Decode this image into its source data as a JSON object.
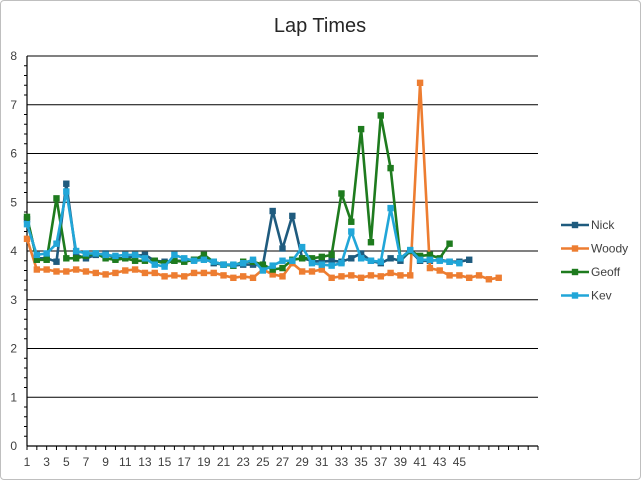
{
  "chart_data": {
    "type": "line",
    "title": "Lap Times",
    "xlabel": "",
    "ylabel": "",
    "ylim": [
      0,
      8
    ],
    "yticks": [
      0,
      1,
      2,
      3,
      4,
      5,
      6,
      7,
      8
    ],
    "xlim": [
      1,
      53
    ],
    "xtick_labels": [
      1,
      3,
      5,
      7,
      9,
      11,
      13,
      15,
      17,
      19,
      21,
      23,
      25,
      27,
      29,
      31,
      33,
      35,
      37,
      39,
      41,
      43,
      45
    ],
    "grid": "horizontal",
    "legend_position": "right",
    "series": [
      {
        "name": "Nick",
        "color": "#1f5b7e",
        "values": [
          4.65,
          3.85,
          3.85,
          3.78,
          5.38,
          3.92,
          3.85,
          3.92,
          3.95,
          3.85,
          3.85,
          3.9,
          3.92,
          3.8,
          3.78,
          3.8,
          3.8,
          3.82,
          3.85,
          3.75,
          3.72,
          3.7,
          3.72,
          3.72,
          3.7,
          4.82,
          4.05,
          4.72,
          3.85,
          3.8,
          3.78,
          3.8,
          3.78,
          3.85,
          3.95,
          3.8,
          3.75,
          3.85,
          3.8,
          4.0,
          3.8,
          3.8,
          3.82,
          3.78,
          3.78,
          3.82
        ]
      },
      {
        "name": "Woody",
        "color": "#ed7d31",
        "values": [
          4.25,
          3.62,
          3.62,
          3.58,
          3.58,
          3.62,
          3.58,
          3.55,
          3.52,
          3.55,
          3.6,
          3.62,
          3.55,
          3.55,
          3.48,
          3.5,
          3.48,
          3.55,
          3.55,
          3.55,
          3.5,
          3.45,
          3.48,
          3.45,
          3.62,
          3.52,
          3.48,
          3.75,
          3.58,
          3.58,
          3.62,
          3.45,
          3.48,
          3.5,
          3.45,
          3.5,
          3.48,
          3.55,
          3.5,
          3.5,
          7.45,
          3.65,
          3.6,
          3.5,
          3.5,
          3.45,
          3.5,
          3.42,
          3.45
        ]
      },
      {
        "name": "Geoff",
        "color": "#1e7b1e",
        "values": [
          4.7,
          3.82,
          3.82,
          5.08,
          3.85,
          3.85,
          3.9,
          3.95,
          3.85,
          3.82,
          3.85,
          3.8,
          3.8,
          3.8,
          3.75,
          3.8,
          3.78,
          3.82,
          3.92,
          3.78,
          3.72,
          3.7,
          3.78,
          3.78,
          3.72,
          3.62,
          3.65,
          3.82,
          3.85,
          3.85,
          3.88,
          3.92,
          5.18,
          4.6,
          6.5,
          4.18,
          6.78,
          5.7,
          3.85,
          4.0,
          3.9,
          3.92,
          3.85,
          4.15
        ]
      },
      {
        "name": "Kev",
        "color": "#21a6d8",
        "values": [
          4.55,
          3.92,
          3.95,
          4.15,
          5.22,
          4.0,
          3.95,
          3.95,
          3.92,
          3.9,
          3.92,
          3.92,
          3.85,
          3.72,
          3.68,
          3.92,
          3.85,
          3.8,
          3.82,
          3.78,
          3.72,
          3.72,
          3.75,
          3.82,
          3.6,
          3.7,
          3.8,
          3.8,
          4.08,
          3.75,
          3.72,
          3.7,
          3.75,
          4.4,
          3.85,
          3.8,
          3.78,
          4.88,
          3.85,
          4.02,
          3.82,
          3.82,
          3.8,
          3.78,
          3.75
        ]
      }
    ]
  }
}
